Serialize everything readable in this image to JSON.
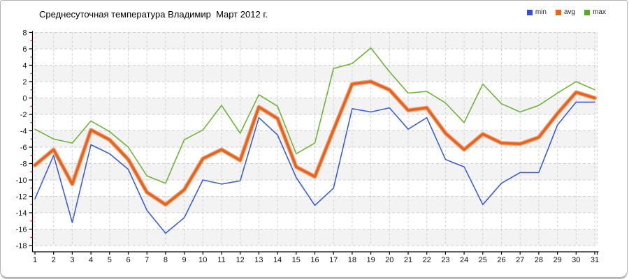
{
  "title": "Среднесуточная температура Владимир  Март 2012 г.",
  "legend": [
    {
      "label": "min",
      "color": "#3050d6"
    },
    {
      "label": "avg",
      "color": "#e8641e"
    },
    {
      "label": "max",
      "color": "#55ab26"
    }
  ],
  "axis": {
    "tick_color": "#000000",
    "minor_tick_color": "#cc2222",
    "grid_color": "#cfcfcf",
    "band_color": "#f3f3f3"
  },
  "chart_data": {
    "type": "line",
    "title": "Среднесуточная температура Владимир  Март 2012 г.",
    "xlabel": "",
    "ylabel": "",
    "x": [
      1,
      2,
      3,
      4,
      5,
      6,
      7,
      8,
      9,
      10,
      11,
      12,
      13,
      14,
      15,
      16,
      17,
      18,
      19,
      20,
      21,
      22,
      23,
      24,
      25,
      26,
      27,
      28,
      29,
      30,
      31
    ],
    "ylim": [
      -18,
      8
    ],
    "ytick_step": 2,
    "grid": true,
    "legend_position": "top-right",
    "series": [
      {
        "name": "min",
        "color": "#3d5fd3",
        "width": 1.6,
        "values": [
          -12.3,
          -7.0,
          -15.2,
          -5.7,
          -6.8,
          -8.7,
          -13.7,
          -16.5,
          -14.6,
          -10.0,
          -10.5,
          -10.1,
          -2.4,
          -4.5,
          -9.7,
          -13.1,
          -11.0,
          -1.3,
          -1.7,
          -1.2,
          -3.8,
          -2.4,
          -7.5,
          -8.4,
          -13.0,
          -10.4,
          -9.1,
          -9.1,
          -3.3,
          -0.5,
          -0.5
        ]
      },
      {
        "name": "avg",
        "color": "#e4631f",
        "halo_color": "#f2a072",
        "width": 3.4,
        "values": [
          -8.2,
          -6.3,
          -10.5,
          -3.9,
          -5.1,
          -7.5,
          -11.5,
          -13.0,
          -11.2,
          -7.4,
          -6.3,
          -7.6,
          -1.1,
          -2.5,
          -8.4,
          -9.6,
          -3.9,
          1.7,
          2.0,
          1.0,
          -1.5,
          -1.2,
          -4.3,
          -6.3,
          -4.4,
          -5.5,
          -5.6,
          -4.8,
          -1.9,
          0.7,
          0.0
        ]
      },
      {
        "name": "max",
        "color": "#6fb33c",
        "width": 1.6,
        "values": [
          -3.8,
          -5.0,
          -5.5,
          -2.8,
          -4.1,
          -6.0,
          -9.5,
          -10.4,
          -5.1,
          -3.9,
          -0.9,
          -4.3,
          0.4,
          -1.0,
          -6.8,
          -5.5,
          3.6,
          4.2,
          6.1,
          3.2,
          0.6,
          0.8,
          -0.6,
          -3.0,
          1.7,
          -0.7,
          -1.7,
          -0.9,
          0.6,
          2.0,
          1.0
        ]
      }
    ]
  }
}
